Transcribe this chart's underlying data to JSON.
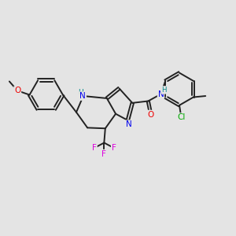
{
  "background_color": "#e4e4e4",
  "bond_color": "#222222",
  "bond_width": 1.4,
  "figsize": [
    3.0,
    3.0
  ],
  "dpi": 100,
  "atom_colors": {
    "N": "#0000ee",
    "O": "#ee0000",
    "F": "#dd00dd",
    "Cl": "#00aa00",
    "H": "#008888",
    "C": "#222222"
  }
}
